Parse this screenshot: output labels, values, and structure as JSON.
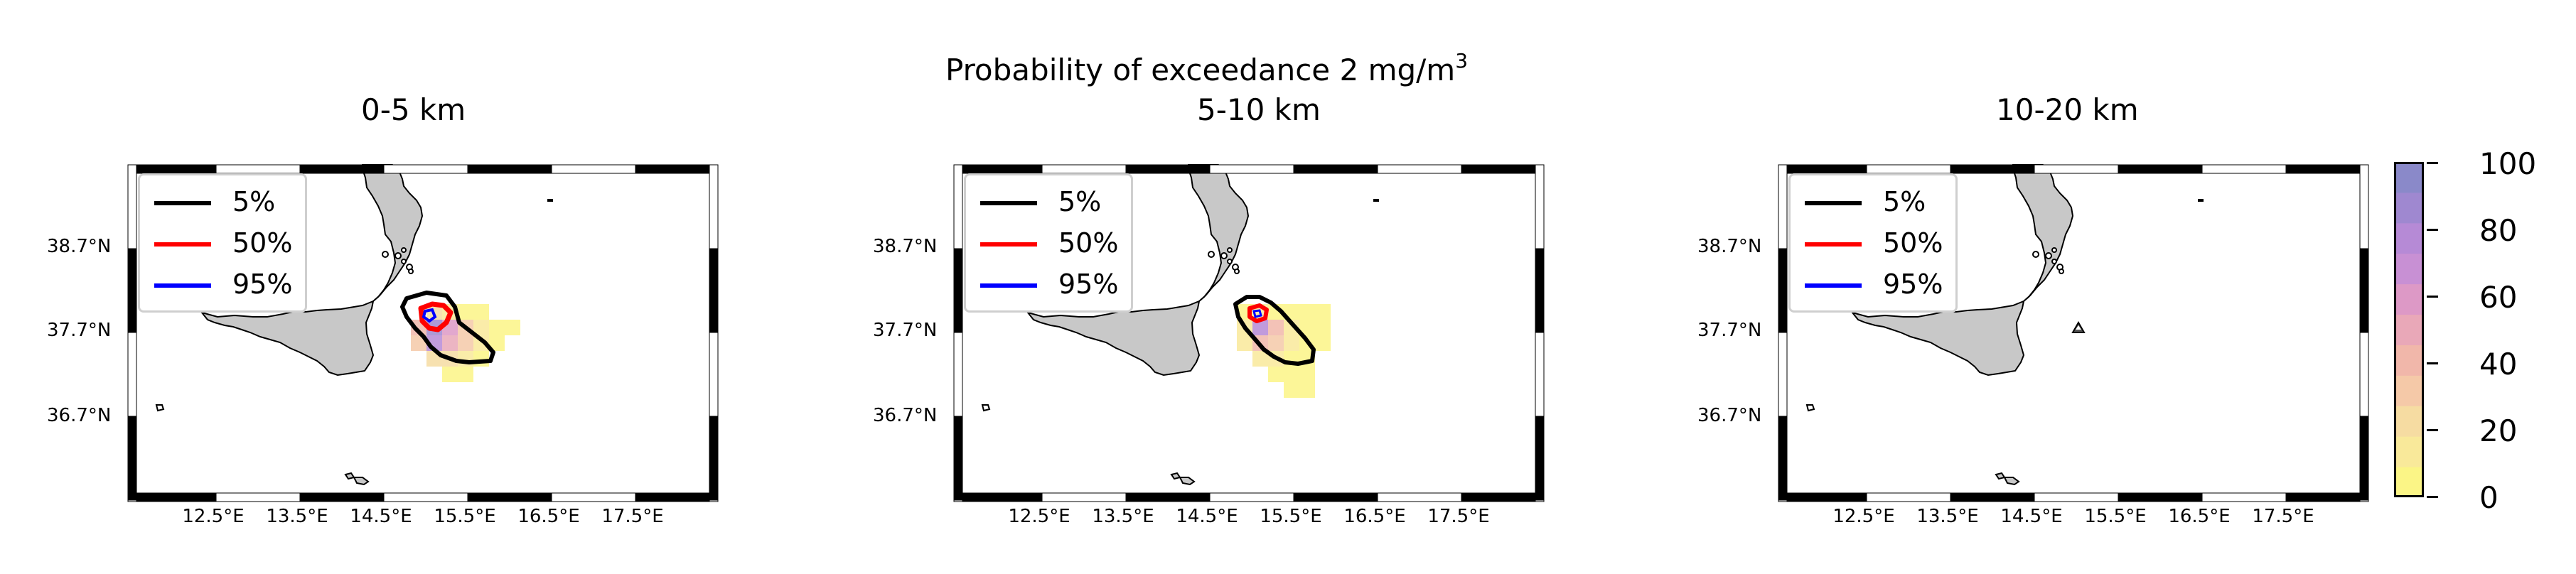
{
  "figure": {
    "suptitle_main": "Probability of exceedance 2 mg/m",
    "suptitle_sup": "3"
  },
  "panels": [
    {
      "title": "0-5 km"
    },
    {
      "title": "5-10 km"
    },
    {
      "title": "10-20 km"
    }
  ],
  "legend": {
    "items": [
      {
        "label": "5%",
        "color": "#000000"
      },
      {
        "label": "50%",
        "color": "#ff0000"
      },
      {
        "label": "95%",
        "color": "#0000ff"
      }
    ]
  },
  "axes": {
    "yticks": [
      "38.7°N",
      "37.7°N",
      "36.7°N"
    ],
    "xticks": [
      "12.5°E",
      "13.5°E",
      "14.5°E",
      "15.5°E",
      "16.5°E",
      "17.5°E"
    ]
  },
  "colorbar": {
    "ticks": [
      "100",
      "80",
      "60",
      "40",
      "20",
      "0"
    ],
    "range": [
      0,
      100
    ],
    "colors": [
      "#fbf586",
      "#f9e99a",
      "#f6dca2",
      "#f5c9a8",
      "#f1b7aa",
      "#e9a8b8",
      "#dd99c6",
      "#c890d4",
      "#b68ad6",
      "#9f88d0",
      "#8a89c9"
    ]
  },
  "chart_data": {
    "type": "heatmap",
    "title": "Probability of exceedance 2 mg/m3",
    "subplots": [
      "0-5 km",
      "5-10 km",
      "10-20 km"
    ],
    "xlabel": "",
    "ylabel": "",
    "xlim_deg_e": [
      11.5,
      18.5
    ],
    "ylim_deg_n": [
      35.7,
      39.7
    ],
    "contour_levels_percent": [
      5,
      50,
      95
    ],
    "colorbar_range_percent": [
      0,
      100
    ],
    "volcano_marker": {
      "lon": 15.0,
      "lat": 37.75
    }
  }
}
